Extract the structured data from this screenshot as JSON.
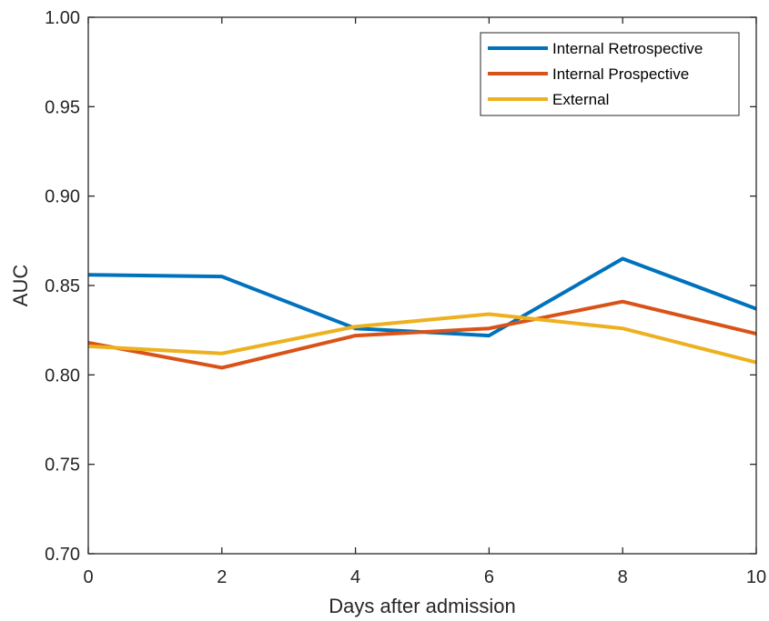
{
  "chart_data": {
    "type": "line",
    "xlabel": "Days after admission",
    "ylabel": "AUC",
    "x": [
      0,
      2,
      4,
      6,
      8,
      10
    ],
    "xlim": [
      0,
      10
    ],
    "ylim": [
      0.7,
      1.0
    ],
    "xticks": [
      "0",
      "2",
      "4",
      "6",
      "8",
      "10"
    ],
    "yticks": [
      "0.70",
      "0.75",
      "0.80",
      "0.85",
      "0.90",
      "0.95",
      "1.00"
    ],
    "grid": false,
    "legend_position": "top-right",
    "series": [
      {
        "name": "Internal Retrospective",
        "color": "#0072BD",
        "values": [
          0.856,
          0.855,
          0.826,
          0.822,
          0.865,
          0.837
        ]
      },
      {
        "name": "Internal Prospective",
        "color": "#D95319",
        "values": [
          0.818,
          0.804,
          0.822,
          0.826,
          0.841,
          0.823
        ]
      },
      {
        "name": "External",
        "color": "#EDB120",
        "values": [
          0.816,
          0.812,
          0.827,
          0.834,
          0.826,
          0.807
        ]
      }
    ]
  }
}
